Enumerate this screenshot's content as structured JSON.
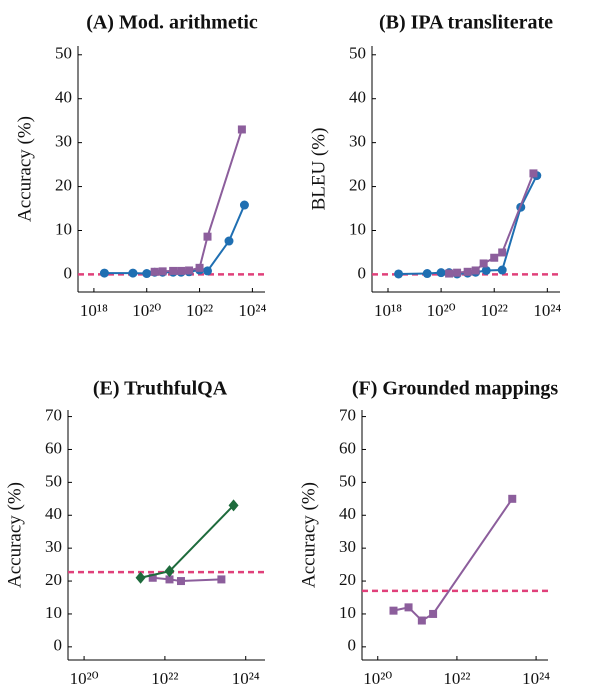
{
  "chart_data": [
    {
      "type": "line",
      "title": "(A) Mod. arithmetic",
      "y_label": "Accuracy (%)",
      "log_x": true,
      "xlim": [
        2.5e+17,
        3e+24
      ],
      "ylim": [
        -4,
        52
      ],
      "xticks": [
        {
          "value": 1e+18,
          "label": "10¹⁸"
        },
        {
          "value": 1e+20,
          "label": "10²⁰"
        },
        {
          "value": 1e+22,
          "label": "10²²"
        },
        {
          "value": 1e+24,
          "label": "10²⁴"
        }
      ],
      "yticks": [
        0,
        10,
        20,
        30,
        40,
        50
      ],
      "baseline": 0,
      "baseline_color": "#e0407a",
      "series": [
        {
          "color": "#1f6fb2",
          "marker": "circle",
          "x": [
            2.5e+18,
            3e+19,
            1e+20,
            2e+20,
            4e+20,
            1e+21,
            2e+21,
            4e+21,
            1e+22,
            2e+22,
            1.3e+23,
            5e+23
          ],
          "values": [
            0.3,
            0.3,
            0.2,
            0.5,
            0.5,
            0.5,
            0.5,
            0.6,
            1,
            0.8,
            7.6,
            15.8
          ]
        },
        {
          "color": "#8c5e9c",
          "marker": "square",
          "x": [
            2e+20,
            4e+20,
            1e+21,
            2e+21,
            4e+21,
            1e+22,
            2e+22,
            4e+23
          ],
          "values": [
            0.6,
            0.7,
            0.8,
            0.8,
            0.9,
            1.5,
            8.6,
            33
          ]
        }
      ]
    },
    {
      "type": "line",
      "title": "(B) IPA transliterate",
      "y_label": "BLEU (%)",
      "log_x": true,
      "xlim": [
        2.5e+17,
        3e+24
      ],
      "ylim": [
        -4,
        52
      ],
      "xticks": [
        {
          "value": 1e+18,
          "label": "10¹⁸"
        },
        {
          "value": 1e+20,
          "label": "10²⁰"
        },
        {
          "value": 1e+22,
          "label": "10²²"
        },
        {
          "value": 1e+24,
          "label": "10²⁴"
        }
      ],
      "yticks": [
        0,
        10,
        20,
        30,
        40,
        50
      ],
      "baseline": 0,
      "baseline_color": "#e0407a",
      "series": [
        {
          "color": "#1f6fb2",
          "marker": "circle",
          "x": [
            2.5e+18,
            3e+19,
            1e+20,
            2e+20,
            4e+20,
            1e+21,
            2e+21,
            5e+21,
            2e+22,
            1e+23,
            4e+23
          ],
          "values": [
            0.1,
            0.2,
            0.4,
            0.4,
            0.1,
            0.3,
            0.5,
            0.9,
            1,
            15.3,
            22.5
          ]
        },
        {
          "color": "#8c5e9c",
          "marker": "square",
          "x": [
            2e+20,
            4e+20,
            1e+21,
            2e+21,
            4e+21,
            1e+22,
            2e+22,
            3e+23
          ],
          "values": [
            0.2,
            0.4,
            0.6,
            0.9,
            2.5,
            3.8,
            5,
            23
          ]
        }
      ]
    },
    {
      "type": "line",
      "title": "(E) TruthfulQA",
      "y_label": "Accuracy (%)",
      "log_x": true,
      "xlim": [
        4e+19,
        3e+24
      ],
      "ylim": [
        -4,
        72
      ],
      "xticks": [
        {
          "value": 1e+20,
          "label": "10²⁰"
        },
        {
          "value": 1e+22,
          "label": "10²²"
        },
        {
          "value": 1e+24,
          "label": "10²⁴"
        }
      ],
      "yticks": [
        0,
        10,
        20,
        30,
        40,
        50,
        60,
        70
      ],
      "baseline": 22.7,
      "baseline_color": "#e0407a",
      "series": [
        {
          "color": "#8c5e9c",
          "marker": "square",
          "x": [
            5e+21,
            1.3e+22,
            2.5e+22,
            2.5e+23
          ],
          "values": [
            21,
            20.5,
            20,
            20.5
          ]
        },
        {
          "color": "#1e6b3c",
          "marker": "diamond",
          "x": [
            2.5e+21,
            1.3e+22,
            5e+23
          ],
          "values": [
            21,
            23,
            43
          ]
        }
      ]
    },
    {
      "type": "line",
      "title": "(F) Grounded mappings",
      "y_label": "Accuracy (%)",
      "log_x": true,
      "xlim": [
        4e+19,
        2e+24
      ],
      "ylim": [
        -4,
        72
      ],
      "xticks": [
        {
          "value": 1e+20,
          "label": "10²⁰"
        },
        {
          "value": 1e+22,
          "label": "10²²"
        },
        {
          "value": 1e+24,
          "label": "10²⁴"
        }
      ],
      "yticks": [
        0,
        10,
        20,
        30,
        40,
        50,
        60,
        70
      ],
      "baseline": 17,
      "baseline_color": "#e0407a",
      "series": [
        {
          "color": "#8c5e9c",
          "marker": "square",
          "x": [
            2.5e+20,
            6e+20,
            1.3e+21,
            2.5e+21,
            2.5e+23
          ],
          "values": [
            11,
            12,
            8,
            10,
            45
          ]
        }
      ]
    }
  ]
}
